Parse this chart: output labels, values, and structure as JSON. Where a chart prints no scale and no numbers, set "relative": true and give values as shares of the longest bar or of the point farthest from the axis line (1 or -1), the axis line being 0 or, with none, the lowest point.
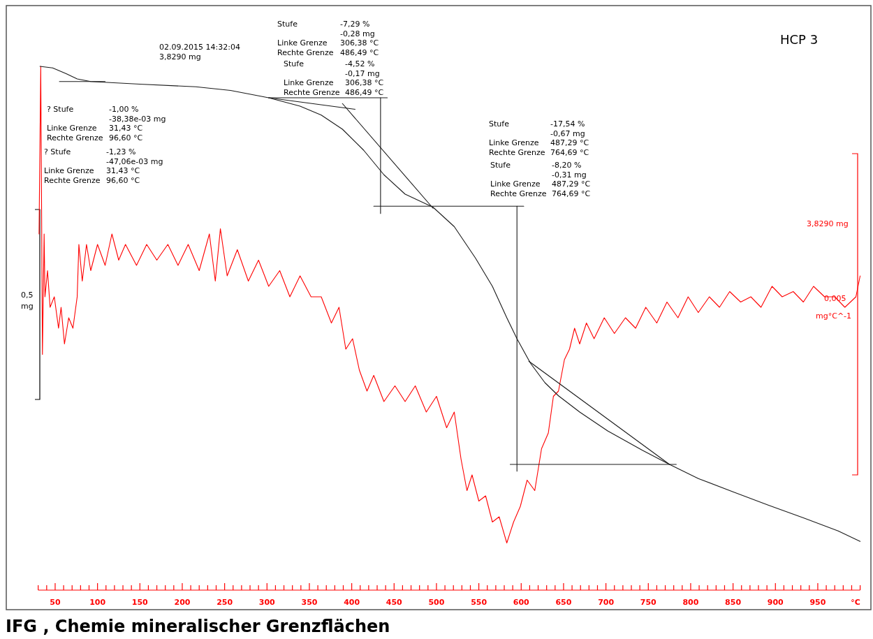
{
  "chart_data": {
    "type": "line",
    "relative": true,
    "title": "HCP 3",
    "xlabel": "°C",
    "xlim": [
      30,
      1000
    ],
    "xticks": [
      {
        "value": 30,
        "label": null
      },
      {
        "value": 40,
        "label": null
      },
      50,
      {
        "value": 60,
        "label": null
      },
      {
        "value": 70,
        "label": null
      },
      {
        "value": 80,
        "label": null
      },
      {
        "value": 90,
        "label": null
      },
      100,
      {
        "value": 110,
        "label": null
      },
      {
        "value": 120,
        "label": null
      },
      {
        "value": 130,
        "label": null
      },
      {
        "value": 140,
        "label": null
      },
      150,
      {
        "value": 160,
        "label": null
      },
      {
        "value": 170,
        "label": null
      },
      {
        "value": 180,
        "label": null
      },
      {
        "value": 190,
        "label": null
      },
      200,
      {
        "value": 210,
        "label": null
      },
      {
        "value": 220,
        "label": null
      },
      {
        "value": 230,
        "label": null
      },
      {
        "value": 240,
        "label": null
      },
      250,
      {
        "value": 260,
        "label": null
      },
      {
        "value": 270,
        "label": null
      },
      {
        "value": 280,
        "label": null
      },
      {
        "value": 290,
        "label": null
      },
      300,
      {
        "value": 310,
        "label": null
      },
      {
        "value": 320,
        "label": null
      },
      {
        "value": 330,
        "label": null
      },
      {
        "value": 340,
        "label": null
      },
      350,
      {
        "value": 360,
        "label": null
      },
      {
        "value": 370,
        "label": null
      },
      {
        "value": 380,
        "label": null
      },
      {
        "value": 390,
        "label": null
      },
      400,
      {
        "value": 410,
        "label": null
      },
      {
        "value": 420,
        "label": null
      },
      {
        "value": 430,
        "label": null
      },
      {
        "value": 440,
        "label": null
      },
      450,
      {
        "value": 460,
        "label": null
      },
      {
        "value": 470,
        "label": null
      },
      {
        "value": 480,
        "label": null
      },
      {
        "value": 490,
        "label": null
      },
      500,
      {
        "value": 510,
        "label": null
      },
      {
        "value": 520,
        "label": null
      },
      {
        "value": 530,
        "label": null
      },
      {
        "value": 540,
        "label": null
      },
      550,
      {
        "value": 560,
        "label": null
      },
      {
        "value": 570,
        "label": null
      },
      {
        "value": 580,
        "label": null
      },
      {
        "value": 590,
        "label": null
      },
      600,
      {
        "value": 610,
        "label": null
      },
      {
        "value": 620,
        "label": null
      },
      {
        "value": 630,
        "label": null
      },
      {
        "value": 640,
        "label": null
      },
      650,
      {
        "value": 660,
        "label": null
      },
      {
        "value": 670,
        "label": null
      },
      {
        "value": 680,
        "label": null
      },
      {
        "value": 690,
        "label": null
      },
      700,
      {
        "value": 710,
        "label": null
      },
      {
        "value": 720,
        "label": null
      },
      {
        "value": 730,
        "label": null
      },
      {
        "value": 740,
        "label": null
      },
      750,
      {
        "value": 760,
        "label": null
      },
      {
        "value": 770,
        "label": null
      },
      {
        "value": 780,
        "label": null
      },
      {
        "value": 790,
        "label": null
      },
      800,
      {
        "value": 810,
        "label": null
      },
      {
        "value": 820,
        "label": null
      },
      {
        "value": 830,
        "label": null
      },
      {
        "value": 840,
        "label": null
      },
      850,
      {
        "value": 860,
        "label": null
      },
      {
        "value": 870,
        "label": null
      },
      {
        "value": 880,
        "label": null
      },
      {
        "value": 890,
        "label": null
      },
      900,
      {
        "value": 910,
        "label": null
      },
      {
        "value": 920,
        "label": null
      },
      {
        "value": 930,
        "label": null
      },
      {
        "value": 940,
        "label": null
      },
      950,
      {
        "value": 960,
        "label": null
      },
      {
        "value": 970,
        "label": null
      },
      {
        "value": 980,
        "label": null
      },
      {
        "value": 990,
        "label": null
      },
      {
        "value": 1000,
        "label": null
      }
    ],
    "series": [
      {
        "color": "#ff0000",
        "x": [
          31,
          33,
          35,
          37,
          38,
          41,
          44,
          49,
          54,
          57,
          61,
          66,
          71,
          76,
          78,
          82,
          87,
          92,
          100,
          109,
          117,
          125,
          133,
          146,
          158,
          170,
          183,
          195,
          207,
          220,
          232,
          239,
          245,
          253,
          265,
          278,
          290,
          302,
          315,
          327,
          339,
          352,
          364,
          376,
          385,
          393,
          401,
          409,
          418,
          426,
          438,
          451,
          463,
          475,
          488,
          500,
          512,
          521,
          529,
          536,
          542,
          550,
          558,
          566,
          574,
          583,
          591,
          599,
          607,
          616,
          624,
          632,
          638,
          644,
          651,
          657,
          663,
          669,
          677,
          686,
          698,
          710,
          723,
          735,
          747,
          760,
          772,
          785,
          797,
          809,
          822,
          834,
          846,
          859,
          871,
          883,
          896,
          908,
          921,
          933,
          945,
          958,
          970,
          982,
          995,
          1000
        ],
        "values": [
          0.68,
          1.0,
          0.45,
          0.68,
          0.56,
          0.61,
          0.54,
          0.56,
          0.5,
          0.54,
          0.47,
          0.52,
          0.5,
          0.56,
          0.66,
          0.59,
          0.66,
          0.61,
          0.66,
          0.62,
          0.68,
          0.63,
          0.66,
          0.62,
          0.66,
          0.63,
          0.66,
          0.62,
          0.66,
          0.61,
          0.68,
          0.59,
          0.69,
          0.6,
          0.65,
          0.59,
          0.63,
          0.58,
          0.61,
          0.56,
          0.6,
          0.56,
          0.56,
          0.51,
          0.54,
          0.46,
          0.48,
          0.42,
          0.38,
          0.41,
          0.36,
          0.39,
          0.36,
          0.39,
          0.34,
          0.37,
          0.31,
          0.34,
          0.25,
          0.19,
          0.22,
          0.17,
          0.18,
          0.13,
          0.14,
          0.09,
          0.13,
          0.16,
          0.21,
          0.19,
          0.27,
          0.3,
          0.37,
          0.38,
          0.44,
          0.46,
          0.5,
          0.47,
          0.51,
          0.48,
          0.52,
          0.49,
          0.52,
          0.5,
          0.54,
          0.51,
          0.55,
          0.52,
          0.56,
          0.53,
          0.56,
          0.54,
          0.57,
          0.55,
          0.56,
          0.54,
          0.58,
          0.56,
          0.57,
          0.55,
          0.58,
          0.56,
          0.56,
          0.54,
          0.56,
          0.6
        ]
      },
      {
        "color": "#1a1a1a",
        "x": [
          32,
          47,
          63,
          76,
          92,
          150,
          216,
          257,
          302,
          339,
          364,
          389,
          414,
          438,
          463,
          496,
          521,
          546,
          566,
          583,
          595,
          611,
          628,
          644,
          669,
          702,
          743,
          775,
          809,
          851,
          892,
          933,
          974,
          1000
        ],
        "values": [
          1.0,
          0.997,
          0.986,
          0.976,
          0.971,
          0.966,
          0.961,
          0.954,
          0.94,
          0.924,
          0.907,
          0.88,
          0.84,
          0.793,
          0.756,
          0.731,
          0.694,
          0.634,
          0.58,
          0.52,
          0.48,
          0.433,
          0.396,
          0.371,
          0.34,
          0.304,
          0.267,
          0.24,
          0.213,
          0.187,
          0.162,
          0.138,
          0.113,
          0.093
        ]
      },
      {
        "color": "#1a1a1a",
        "x": [
          302,
          442
        ],
        "values": [
          0.94,
          0.94
        ]
      },
      {
        "color": "#1a1a1a",
        "x": [
          434,
          434
        ],
        "values": [
          0.94,
          0.719
        ]
      },
      {
        "color": "#1a1a1a",
        "x": [
          426,
          603
        ],
        "values": [
          0.733,
          0.733
        ]
      },
      {
        "color": "#1a1a1a",
        "x": [
          595,
          595
        ],
        "values": [
          0.733,
          0.227
        ]
      },
      {
        "color": "#1a1a1a",
        "x": [
          587,
          783
        ],
        "values": [
          0.24,
          0.24
        ]
      },
      {
        "color": "#1a1a1a",
        "x": [
          302,
          404
        ],
        "values": [
          0.94,
          0.918
        ]
      },
      {
        "color": "#1a1a1a",
        "x": [
          389,
          496
        ],
        "values": [
          0.929,
          0.729
        ]
      },
      {
        "color": "#1a1a1a",
        "x": [
          609,
          775
        ],
        "values": [
          0.437,
          0.24
        ]
      },
      {
        "color": "#1a1a1a",
        "x": [
          55,
          109
        ],
        "values": [
          0.971,
          0.971
        ]
      }
    ],
    "annotations": [
      "02.09.2015 14:32:04",
      "3,8290 mg",
      "Stufe",
      "-7,29 %",
      "-0,28 mg",
      "Linke Grenze",
      "306,38 °C",
      "Rechte Grenze",
      "486,49 °C",
      "Stufe",
      "-4,52 %",
      "-0,17 mg",
      "Linke Grenze",
      "306,38 °C",
      "Rechte Grenze",
      "486,49 °C",
      "? Stufe",
      "-1,00 %",
      "-38,38e-03 mg",
      "Linke Grenze",
      "31,43 °C",
      "Rechte Grenze",
      "96,60 °C",
      "? Stufe",
      "-1,23 %",
      "-47,06e-03 mg",
      "Linke Grenze",
      "31,43 °C",
      "Rechte Grenze",
      "96,60 °C",
      "Stufe",
      "-17,54 %",
      "-0,67 mg",
      "Linke Grenze",
      "487,29 °C",
      "Rechte Grenze",
      "764,69 °C",
      "Stufe",
      "-8,20 %",
      "-0,31 mg",
      "Linke Grenze",
      "487,29 °C",
      "Rechte Grenze",
      "764,69 °C",
      "0,5",
      "mg",
      "3,8290 mg",
      "0,005",
      "mg°C^-1",
      "IFG , Chemie mineralischer Grenzflächen"
    ]
  }
}
